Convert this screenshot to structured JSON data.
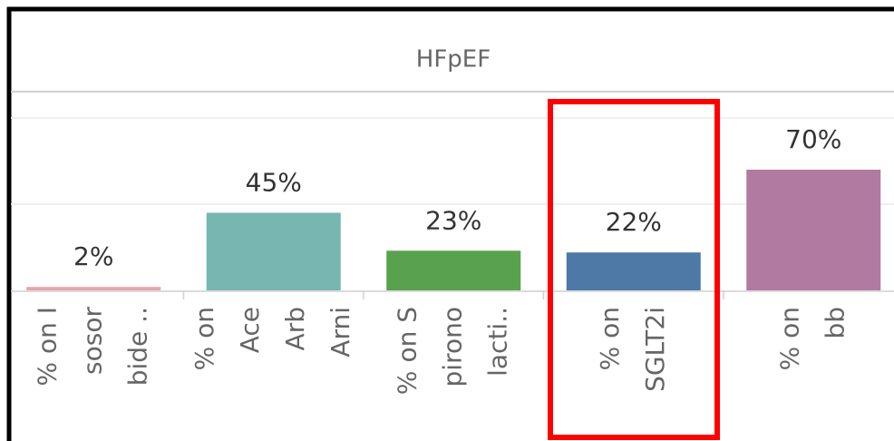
{
  "chart_data": {
    "type": "bar",
    "title": "HFpEF",
    "categories": [
      [
        "% on I",
        "sosor",
        "bide .."
      ],
      [
        "% on",
        "Ace",
        "Arb",
        "Arni"
      ],
      [
        "% on S",
        "pirono",
        "lacti.."
      ],
      [
        "% on",
        "SGLT2i"
      ],
      [
        "% on",
        "bb"
      ]
    ],
    "values": [
      2,
      45,
      23,
      22,
      70
    ],
    "value_labels": [
      "2%",
      "45%",
      "23%",
      "22%",
      "70%"
    ],
    "colors": [
      "#e8a3aa",
      "#76b7b2",
      "#59a14f",
      "#4e79a7",
      "#b07aa1"
    ],
    "ylim": [
      0,
      100
    ],
    "yticks": [
      50,
      100
    ],
    "grid": true
  }
}
